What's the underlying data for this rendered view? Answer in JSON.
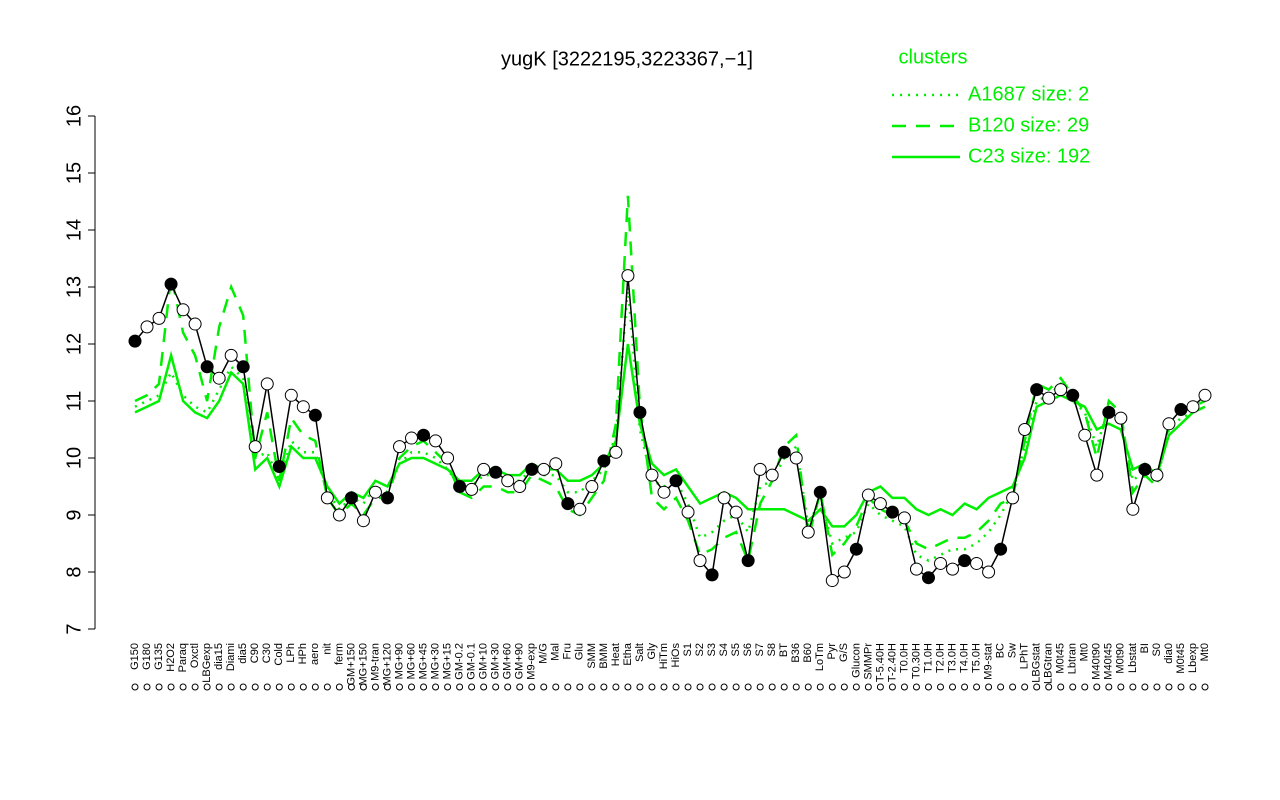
{
  "chart_data": {
    "type": "line",
    "title": "yugK [3222195,3223367,−1]",
    "categories": [
      "G150",
      "G180",
      "G135",
      "H2O2",
      "Paraq",
      "Oxctl",
      "LBGexp",
      "dia15",
      "Diami",
      "dia5",
      "C90",
      "C30",
      "Cold",
      "LPh",
      "HPh",
      "aero",
      "nit",
      "ferm",
      "GM+150",
      "MG+150",
      "M9-tran",
      "MG+120",
      "MG+90",
      "MG+60",
      "MG+45",
      "MG+30",
      "MG+15",
      "GM-0.2",
      "GM-0.1",
      "GM+10",
      "GM+30",
      "GM+60",
      "GM+90",
      "M9-exp",
      "M/G",
      "Mal",
      "Fru",
      "Glu",
      "SMM",
      "BMM",
      "Heat",
      "Etha",
      "Salt",
      "Gly",
      "HiTm",
      "HiOs",
      "S1",
      "S2",
      "S3",
      "S4",
      "S5",
      "S6",
      "S7",
      "S8",
      "BT",
      "B36",
      "B60",
      "LoTm",
      "Pyr",
      "G/S",
      "Glucon",
      "SMMPr",
      "T-5.40H",
      "T-2.40H",
      "T0.0H",
      "T0.30H",
      "T1.0H",
      "T2.0H",
      "T3.0H",
      "T4.0H",
      "T5.0H",
      "M9-stat",
      "BC",
      "Sw",
      "LPhT",
      "LBGstat",
      "LBGtran",
      "M0t45",
      "Lbtran",
      "Mt0",
      "M40t90",
      "M40t45",
      "M0t90",
      "Lbstat",
      "BI",
      "S0",
      "dia0",
      "M0t45",
      "Lbexp",
      "Mt0"
    ],
    "values": [
      12.05,
      12.3,
      12.45,
      13.05,
      12.6,
      12.35,
      11.6,
      11.4,
      11.8,
      11.6,
      10.2,
      11.3,
      9.85,
      11.1,
      10.9,
      10.75,
      9.3,
      9.0,
      9.3,
      8.9,
      9.4,
      9.3,
      10.2,
      10.35,
      10.4,
      10.3,
      10.0,
      9.5,
      9.45,
      9.8,
      9.75,
      9.6,
      9.5,
      9.8,
      9.8,
      9.9,
      9.2,
      9.1,
      9.5,
      9.95,
      10.1,
      13.2,
      10.8,
      9.7,
      9.4,
      9.6,
      9.05,
      8.2,
      7.95,
      9.3,
      9.05,
      8.2,
      9.8,
      9.7,
      10.1,
      10.0,
      8.7,
      9.4,
      7.85,
      8.0,
      8.4,
      9.35,
      9.2,
      9.05,
      8.95,
      8.05,
      7.9,
      8.15,
      8.05,
      8.2,
      8.15,
      8.0,
      8.4,
      9.3,
      10.5,
      11.2,
      11.05,
      11.2,
      11.1,
      10.4,
      9.7,
      10.8,
      10.7,
      9.1,
      9.8,
      9.7,
      10.6,
      10.85,
      10.9,
      11.1
    ],
    "color": "#000000",
    "legend_title": "clusters",
    "series": [
      {
        "name": "A1687 size: 2",
        "color": "#00ee00",
        "linestyle": "dotted",
        "values": [
          10.9,
          11.0,
          11.1,
          11.5,
          11.1,
          10.9,
          10.8,
          11.2,
          11.6,
          11.4,
          10.0,
          10.1,
          9.6,
          10.3,
          10.1,
          10.1,
          9.4,
          9.1,
          9.3,
          9.2,
          9.5,
          9.4,
          9.9,
          10.1,
          10.1,
          10.0,
          9.8,
          9.5,
          9.5,
          9.7,
          9.7,
          9.6,
          9.6,
          9.8,
          9.7,
          9.7,
          9.4,
          9.4,
          9.6,
          9.8,
          10.4,
          13.0,
          10.5,
          9.6,
          9.5,
          9.6,
          9.2,
          8.6,
          8.7,
          8.9,
          9.0,
          8.7,
          9.5,
          9.6,
          10.0,
          10.2,
          8.8,
          9.3,
          8.5,
          8.6,
          8.7,
          9.2,
          9.0,
          8.9,
          8.8,
          8.3,
          8.2,
          8.3,
          8.4,
          8.4,
          8.5,
          8.7,
          9.0,
          9.4,
          10.2,
          11.0,
          11.1,
          11.3,
          11.0,
          10.8,
          10.2,
          10.9,
          10.7,
          9.6,
          9.8,
          9.6,
          10.5,
          10.7,
          10.8,
          10.9
        ]
      },
      {
        "name": "B120 size: 29",
        "color": "#00ee00",
        "linestyle": "dashed",
        "values": [
          11.0,
          11.1,
          11.3,
          13.2,
          12.2,
          11.8,
          11.0,
          12.3,
          13.0,
          12.5,
          10.0,
          10.8,
          9.6,
          10.7,
          10.4,
          10.3,
          9.3,
          9.0,
          9.2,
          9.0,
          9.3,
          9.3,
          10.0,
          10.2,
          10.3,
          10.1,
          9.9,
          9.4,
          9.3,
          9.5,
          9.5,
          9.4,
          9.4,
          9.7,
          9.6,
          9.5,
          9.1,
          9.0,
          9.3,
          9.6,
          10.6,
          14.6,
          10.9,
          9.3,
          9.1,
          9.3,
          8.9,
          8.3,
          8.4,
          8.6,
          8.7,
          8.2,
          9.2,
          9.6,
          10.2,
          10.4,
          8.6,
          9.4,
          8.3,
          8.5,
          8.8,
          9.3,
          9.1,
          9.0,
          8.9,
          8.5,
          8.4,
          8.5,
          8.6,
          8.6,
          8.7,
          8.9,
          9.2,
          9.3,
          10.3,
          11.3,
          11.2,
          11.4,
          11.1,
          10.8,
          10.0,
          11.0,
          10.8,
          9.4,
          9.7,
          9.5,
          10.6,
          10.8,
          10.9,
          11.0
        ]
      },
      {
        "name": "C23 size: 192",
        "color": "#00ee00",
        "linestyle": "solid",
        "values": [
          10.8,
          10.9,
          11.0,
          11.8,
          11.0,
          10.8,
          10.7,
          11.0,
          11.5,
          11.3,
          9.8,
          10.0,
          9.5,
          10.2,
          10.0,
          10.0,
          9.5,
          9.2,
          9.4,
          9.3,
          9.6,
          9.5,
          9.9,
          10.0,
          10.0,
          9.9,
          9.8,
          9.6,
          9.6,
          9.8,
          9.8,
          9.7,
          9.7,
          9.9,
          9.8,
          9.8,
          9.6,
          9.6,
          9.7,
          9.9,
          10.3,
          12.0,
          10.6,
          9.9,
          9.7,
          9.8,
          9.5,
          9.2,
          9.3,
          9.4,
          9.3,
          9.1,
          9.1,
          9.1,
          9.1,
          9.0,
          8.9,
          9.1,
          8.8,
          8.8,
          9.0,
          9.4,
          9.5,
          9.3,
          9.3,
          9.1,
          9.0,
          9.1,
          9.0,
          9.2,
          9.1,
          9.3,
          9.4,
          9.5,
          10.0,
          10.9,
          11.0,
          11.1,
          11.0,
          10.9,
          10.5,
          10.6,
          10.5,
          9.8,
          9.9,
          9.7,
          10.4,
          10.6,
          10.8,
          10.9
        ]
      }
    ],
    "ylim": [
      7,
      16
    ],
    "yticks": [
      7,
      8,
      9,
      10,
      11,
      12,
      13,
      14,
      15,
      16
    ]
  }
}
